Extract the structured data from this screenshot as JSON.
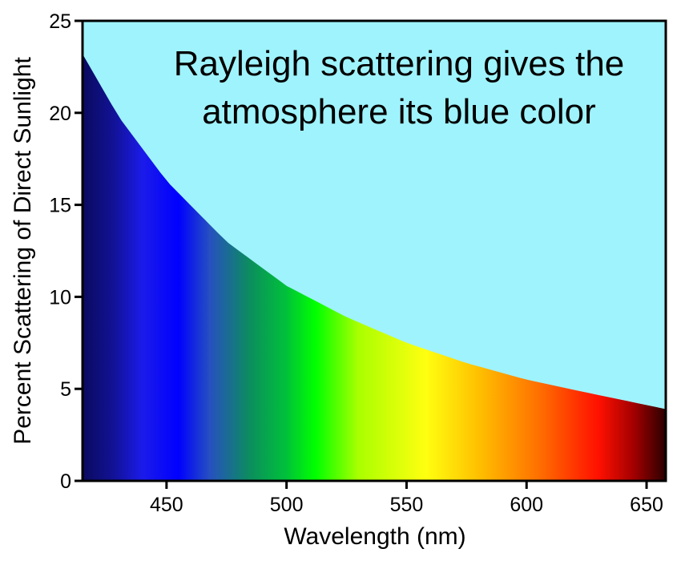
{
  "chart_data": {
    "type": "area",
    "title": "",
    "annotation": [
      "Rayleigh scattering gives the",
      "atmosphere its blue color"
    ],
    "xlabel": "Wavelength (nm)",
    "ylabel": "Percent Scattering of Direct Sunlight",
    "xlim": [
      415,
      658
    ],
    "ylim": [
      0,
      25
    ],
    "xticks": [
      "450",
      "500",
      "550",
      "600",
      "650"
    ],
    "xtick_values": [
      450,
      500,
      550,
      600,
      650
    ],
    "yticks": [
      "0",
      "5",
      "10",
      "15",
      "20",
      "25"
    ],
    "ytick_values": [
      0,
      5,
      10,
      15,
      20,
      25
    ],
    "grid": false,
    "series": [
      {
        "x": [
          415,
          430,
          450,
          475,
          500,
          525,
          550,
          575,
          600,
          625,
          658
        ],
        "y": [
          23.2,
          19.8,
          16.3,
          13.0,
          10.6,
          8.9,
          7.5,
          6.4,
          5.5,
          4.8,
          3.9
        ]
      }
    ],
    "colors": {
      "sky": "#9ff3fc",
      "spectrum": [
        [
          415,
          "#0a0a5e"
        ],
        [
          428,
          "#121296"
        ],
        [
          440,
          "#1b1bea"
        ],
        [
          455,
          "#0000ff"
        ],
        [
          468,
          "#2650c0"
        ],
        [
          485,
          "#0b8f5c"
        ],
        [
          500,
          "#00c23a"
        ],
        [
          512,
          "#00ff00"
        ],
        [
          530,
          "#aaff00"
        ],
        [
          558,
          "#ffff10"
        ],
        [
          580,
          "#ffc000"
        ],
        [
          605,
          "#ff7000"
        ],
        [
          630,
          "#ff1000"
        ],
        [
          645,
          "#a00000"
        ],
        [
          658,
          "#2a0000"
        ]
      ],
      "axis": "#000000"
    }
  }
}
